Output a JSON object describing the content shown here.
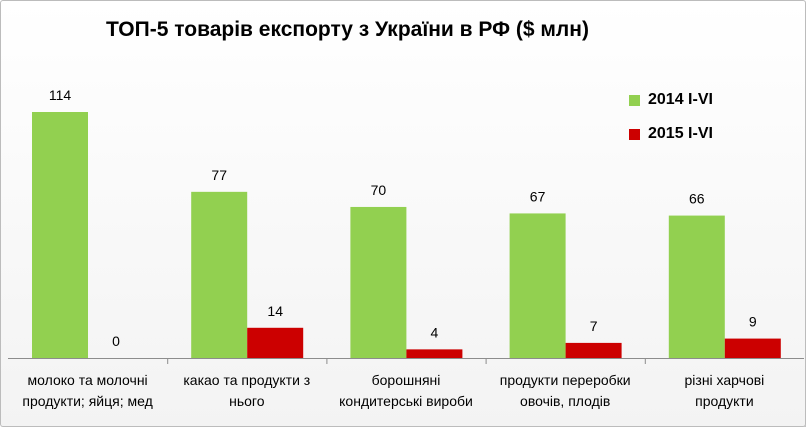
{
  "chart_data": {
    "type": "bar",
    "title": "ТОП-5 товарів експорту з України в РФ ($ млн)",
    "categories": [
      [
        "молоко та молочні",
        "продукти; яйця; мед"
      ],
      [
        "какао та продукти з",
        "нього"
      ],
      [
        "борошняні",
        "кондитерські вироби"
      ],
      [
        "продукти переробки",
        "овочів, плодів"
      ],
      [
        "різні харчові",
        "продукти"
      ]
    ],
    "series": [
      {
        "name": "2014 I-VI",
        "values": [
          114,
          77,
          70,
          67,
          66
        ],
        "color": "#92d050"
      },
      {
        "name": "2015 I-VI",
        "values": [
          0,
          14,
          4,
          7,
          9
        ],
        "color": "#cc0000"
      }
    ],
    "ylim": [
      0,
      125
    ],
    "grid": false,
    "legend": "right"
  }
}
